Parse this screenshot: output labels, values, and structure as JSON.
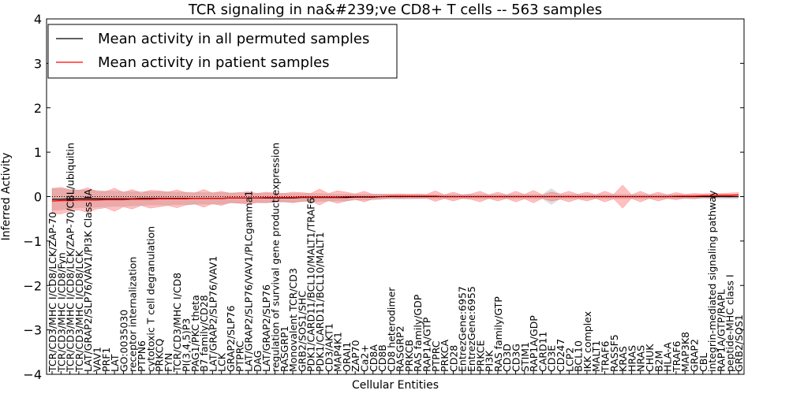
{
  "chart_data": {
    "type": "line",
    "title": "TCR signaling in na&#239;ve CD8+ T cells -- 563 samples",
    "xlabel": "Cellular Entities",
    "ylabel": "Inferred Activity",
    "ylim": [
      -4,
      4
    ],
    "yticks": [
      -4,
      -3,
      -2,
      -1,
      0,
      1,
      2,
      3,
      4
    ],
    "grid": false,
    "legend_position": "top-left",
    "legend": [
      {
        "label": "Mean activity in all permuted samples",
        "color": "#000000"
      },
      {
        "label": "Mean activity in patient samples",
        "color": "#ff0000"
      }
    ],
    "categories": [
      "TCR/CD3/MHC I/CD8/LCK/ZAP-70",
      "TCR/CD3/MHC I/CD8/Fyn",
      "TCR/CD3/MHC I/CD8/LCK/ZAP-70/CBL/ubiquitin",
      "TCR/CD3/MHC I/CD8/LCK",
      "LAT/GRAP2/SLP76/VAV1/PI3K Class IA",
      "VAV1",
      "PRF1",
      "LAT",
      "GO:0035030",
      "receptor internalization",
      "PTPN6",
      "cytotoxic T cell degranulation",
      "PRKCQ",
      "FYN",
      "TCR/CD3/MHC I/CD8",
      "PI(3,4,5)P3",
      "PAG1/PKC theta",
      "B7 family/CD28",
      "LAT/GRAP2/SLP76/VAV1",
      "LCK",
      "GRAP2/SLP76",
      "PTPRC",
      "LAT/GRAP2/SLP76/VAV1/PLCgamma1",
      "DAG",
      "LAT/GRAP2/SLP76",
      "regulation of survival gene product expression",
      "RASGRP1",
      "Monovalent TCR/CD3",
      "GRB2/SOS1/SHC",
      "PDK1/CARD11/BCL10/MALT1/TRAF6",
      "PDK1/CARD11/BCL10/MALT1",
      "CD3/AKT1",
      "MAP4K1",
      "ORAI1",
      "ZAP70",
      "Ca2+",
      "CD8A",
      "CD8B",
      "CD8 heterodimer",
      "RASGRP2",
      "PRKCB",
      "RAS family/GDP",
      "RAP1A/GTP",
      "PTPRC",
      "PRKCA",
      "CD28",
      "EntrezGene:6957",
      "EntrezGene:6955",
      "PRKCE",
      "PI3K",
      "RAS family/GTP",
      "CD3D",
      "CD3G",
      "STIM1",
      "RAP1A/GDP",
      "CARD11",
      "CD3E",
      "CD247",
      "LCP2",
      "BCL10",
      "IKK complex",
      "MALT1",
      "TRAF6",
      "RASSF5",
      "KRAS",
      "HRAS",
      "NRAS",
      "CHUK",
      "B2M",
      "HLA-A",
      "TRAF6",
      "MAP3K8",
      "GRAP2",
      "CBL",
      "integrin-mediated signaling pathway",
      "RAP1A/GTP/RAPL",
      "peptide-MHC class I",
      "GRB2/SOS1"
    ],
    "series": [
      {
        "name": "Mean activity in all permuted samples",
        "color": "#000000",
        "values": [
          -0.06,
          -0.06,
          -0.05,
          -0.05,
          -0.05,
          -0.05,
          -0.05,
          -0.05,
          -0.05,
          -0.05,
          -0.04,
          -0.04,
          -0.04,
          -0.04,
          -0.04,
          -0.04,
          -0.04,
          -0.04,
          -0.04,
          -0.04,
          -0.03,
          -0.03,
          -0.03,
          -0.03,
          -0.03,
          -0.03,
          -0.03,
          -0.03,
          -0.02,
          -0.02,
          -0.02,
          -0.02,
          -0.02,
          -0.02,
          -0.01,
          -0.01,
          -0.01,
          0.0,
          0.0,
          0.0,
          0.0,
          0.0,
          0.0,
          0.0,
          0.0,
          0.0,
          0.0,
          0.0,
          0.0,
          0.0,
          0.0,
          0.0,
          0.0,
          0.0,
          0.0,
          0.0,
          0.0,
          0.0,
          0.0,
          0.0,
          0.0,
          0.0,
          0.0,
          0.0,
          0.0,
          0.0,
          0.0,
          0.0,
          0.0,
          0.0,
          0.0,
          0.0,
          0.0,
          0.0,
          0.0,
          0.0,
          0.0,
          0.0
        ],
        "band": [
          0.25,
          0.24,
          0.22,
          0.2,
          0.2,
          0.19,
          0.18,
          0.17,
          0.17,
          0.16,
          0.16,
          0.15,
          0.15,
          0.15,
          0.14,
          0.14,
          0.14,
          0.13,
          0.13,
          0.13,
          0.12,
          0.12,
          0.11,
          0.11,
          0.11,
          0.1,
          0.1,
          0.1,
          0.09,
          0.09,
          0.09,
          0.08,
          0.08,
          0.08,
          0.07,
          0.07,
          0.07,
          0.06,
          0.06,
          0.06,
          0.06,
          0.05,
          0.05,
          0.05,
          0.05,
          0.05,
          0.05,
          0.05,
          0.05,
          0.05,
          0.05,
          0.05,
          0.05,
          0.05,
          0.05,
          0.05,
          0.18,
          0.05,
          0.05,
          0.05,
          0.05,
          0.05,
          0.05,
          0.05,
          0.05,
          0.05,
          0.05,
          0.05,
          0.05,
          0.05,
          0.05,
          0.05,
          0.05,
          0.05,
          0.05,
          0.05,
          0.05,
          0.05
        ]
      },
      {
        "name": "Mean activity in patient samples",
        "color": "#ff0000",
        "values": [
          -0.1,
          -0.09,
          -0.09,
          -0.08,
          -0.08,
          -0.08,
          -0.07,
          -0.07,
          -0.07,
          -0.06,
          -0.06,
          -0.06,
          -0.05,
          -0.05,
          -0.05,
          -0.05,
          -0.04,
          -0.04,
          -0.04,
          -0.04,
          -0.03,
          -0.03,
          -0.03,
          -0.03,
          -0.02,
          -0.02,
          -0.02,
          -0.02,
          -0.01,
          -0.01,
          -0.01,
          -0.01,
          -0.01,
          0.0,
          0.0,
          0.0,
          0.0,
          0.0,
          0.01,
          0.01,
          0.01,
          0.01,
          0.01,
          0.01,
          0.0,
          0.0,
          0.0,
          0.0,
          0.0,
          0.0,
          0.0,
          0.0,
          0.0,
          0.0,
          0.0,
          0.0,
          0.0,
          0.0,
          0.0,
          0.0,
          0.0,
          0.0,
          0.0,
          0.0,
          0.0,
          0.0,
          0.0,
          0.0,
          0.0,
          0.0,
          0.01,
          0.01,
          0.01,
          0.02,
          0.02,
          0.03,
          0.03,
          0.04
        ],
        "band": [
          0.28,
          0.3,
          0.24,
          0.22,
          0.28,
          0.2,
          0.18,
          0.26,
          0.16,
          0.22,
          0.14,
          0.2,
          0.18,
          0.15,
          0.2,
          0.14,
          0.12,
          0.2,
          0.12,
          0.16,
          0.1,
          0.12,
          0.14,
          0.1,
          0.12,
          0.1,
          0.09,
          0.12,
          0.1,
          0.08,
          0.18,
          0.08,
          0.14,
          0.1,
          0.06,
          0.12,
          0.05,
          0.05,
          0.04,
          0.05,
          0.04,
          0.05,
          0.04,
          0.12,
          0.04,
          0.1,
          0.04,
          0.06,
          0.12,
          0.04,
          0.1,
          0.04,
          0.12,
          0.05,
          0.14,
          0.04,
          0.1,
          0.06,
          0.12,
          0.05,
          0.1,
          0.04,
          0.12,
          0.05,
          0.26,
          0.04,
          0.12,
          0.04,
          0.1,
          0.04,
          0.08,
          0.04,
          0.06,
          0.04,
          0.05,
          0.04,
          0.05,
          0.05
        ]
      }
    ]
  }
}
